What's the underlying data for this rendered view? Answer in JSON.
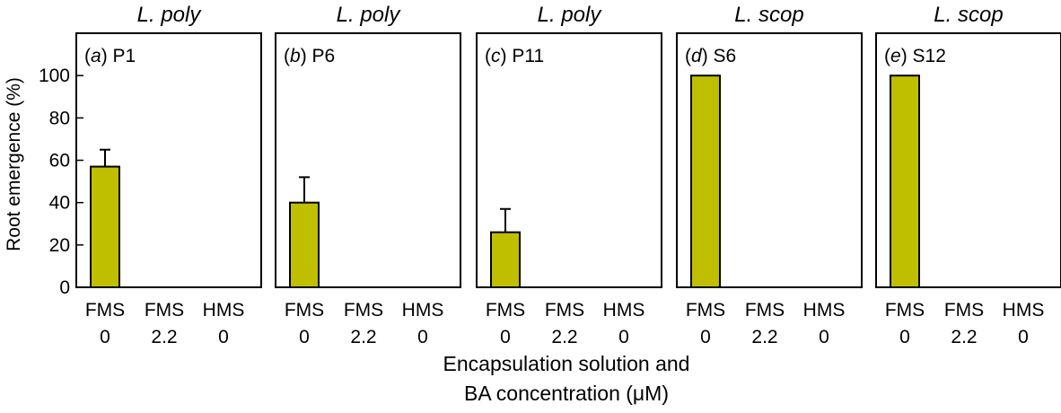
{
  "chart_data": {
    "type": "bar",
    "ylabel": "Root emergence (%)",
    "xlabel_lines": [
      "Encapsulation solution and",
      "BA concentration (μM)"
    ],
    "ylim": [
      0,
      120
    ],
    "yticks": [
      0,
      20,
      40,
      60,
      80,
      100
    ],
    "categories": [
      {
        "top": "FMS",
        "bottom": "0"
      },
      {
        "top": "FMS",
        "bottom": "2.2"
      },
      {
        "top": "HMS",
        "bottom": "0"
      }
    ],
    "bar_color": "#bfbf00",
    "panels": [
      {
        "species": "L. poly",
        "letter": "a",
        "code": "P1",
        "values": [
          57,
          0,
          0
        ],
        "errors": [
          8,
          0,
          0
        ]
      },
      {
        "species": "L. poly",
        "letter": "b",
        "code": "P6",
        "values": [
          40,
          0,
          0
        ],
        "errors": [
          12,
          0,
          0
        ]
      },
      {
        "species": "L. poly",
        "letter": "c",
        "code": "P11",
        "values": [
          26,
          0,
          0
        ],
        "errors": [
          11,
          0,
          0
        ]
      },
      {
        "species": "L. scop",
        "letter": "d",
        "code": "S6",
        "values": [
          100,
          0,
          0
        ],
        "errors": [
          0,
          0,
          0
        ]
      },
      {
        "species": "L. scop",
        "letter": "e",
        "code": "S12",
        "values": [
          100,
          0,
          0
        ],
        "errors": [
          0,
          0,
          0
        ]
      }
    ]
  }
}
